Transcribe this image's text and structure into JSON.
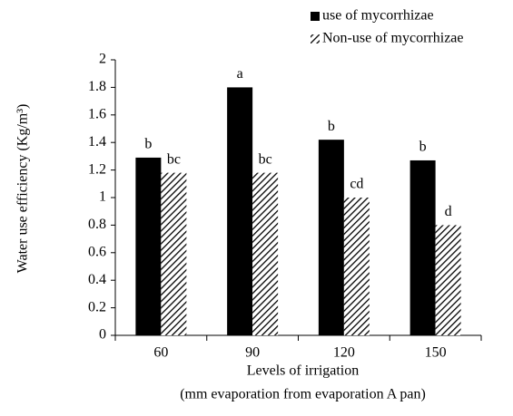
{
  "chart_data": {
    "type": "bar",
    "ylabel": "Water use efficiency (Kg/m³)",
    "xlabel": [
      "Levels of irrigation",
      "(mm evaporation from evaporation A pan)"
    ],
    "categories": [
      "60",
      "90",
      "120",
      "150"
    ],
    "series": [
      {
        "name": "use of mycorrhizae",
        "color": "#000000",
        "hatch": false,
        "values": [
          1.29,
          1.8,
          1.42,
          1.27
        ],
        "labels": [
          "b",
          "a",
          "b",
          "b"
        ]
      },
      {
        "name": "Non-use of mycorrhizae",
        "color": "#000000",
        "hatch": true,
        "values": [
          1.18,
          1.18,
          1.0,
          0.8
        ],
        "labels": [
          "bc",
          "bc",
          "cd",
          "d"
        ]
      }
    ],
    "ylim": [
      0,
      2
    ],
    "yticks": [
      0,
      0.2,
      0.4,
      0.6,
      0.8,
      1,
      1.2,
      1.4,
      1.6,
      1.8,
      2
    ],
    "grid": false,
    "legend": "top-right"
  }
}
